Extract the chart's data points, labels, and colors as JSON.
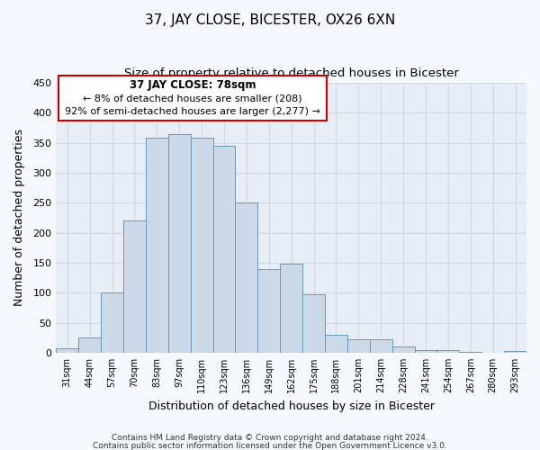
{
  "title": "37, JAY CLOSE, BICESTER, OX26 6XN",
  "subtitle": "Size of property relative to detached houses in Bicester",
  "xlabel": "Distribution of detached houses by size in Bicester",
  "ylabel": "Number of detached properties",
  "bar_labels": [
    "31sqm",
    "44sqm",
    "57sqm",
    "70sqm",
    "83sqm",
    "97sqm",
    "110sqm",
    "123sqm",
    "136sqm",
    "149sqm",
    "162sqm",
    "175sqm",
    "188sqm",
    "201sqm",
    "214sqm",
    "228sqm",
    "241sqm",
    "254sqm",
    "267sqm",
    "280sqm",
    "293sqm"
  ],
  "bar_values": [
    8,
    25,
    100,
    220,
    358,
    365,
    358,
    345,
    250,
    140,
    148,
    97,
    30,
    23,
    22,
    11,
    5,
    4,
    2,
    0,
    3
  ],
  "bar_color": "#ccd9e8",
  "bar_edge_color": "#6699bb",
  "ylim": [
    0,
    450
  ],
  "yticks": [
    0,
    50,
    100,
    150,
    200,
    250,
    300,
    350,
    400,
    450
  ],
  "annotation_title": "37 JAY CLOSE: 78sqm",
  "annotation_line1": "← 8% of detached houses are smaller (208)",
  "annotation_line2": "92% of semi-detached houses are larger (2,277) →",
  "annotation_box_color": "#ffffff",
  "annotation_box_edge": "#cc0000",
  "footer1": "Contains HM Land Registry data © Crown copyright and database right 2024.",
  "footer2": "Contains public sector information licensed under the Open Government Licence v3.0.",
  "background_color": "#f5f8fc",
  "plot_background_color": "#e8eef5",
  "grid_color": "#d0d8e0"
}
